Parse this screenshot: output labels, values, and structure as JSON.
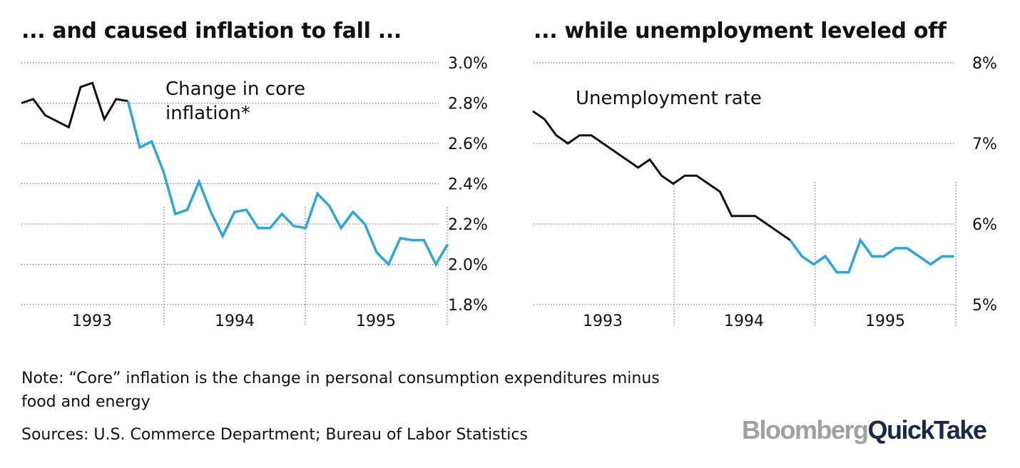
{
  "titles": {
    "left": "... and caused inflation to fall ...",
    "right": "... while unemployment leveled off"
  },
  "note": "Note: “Core” inflation is the change in personal consumption expenditures minus food and energy",
  "sources": "Sources: U.S. Commerce Department; Bureau of Labor Statistics",
  "logo": {
    "part1": "Bloomberg",
    "part2": "QuickTake"
  },
  "colors": {
    "highlight": "#2aa7dc",
    "base": "#111111",
    "grid": "#666666"
  },
  "chart_data": [
    {
      "type": "line",
      "title": "... and caused inflation to fall ...",
      "annotation": [
        "Change in core",
        "inflation*"
      ],
      "x_tick_labels": [
        "1993",
        "1994",
        "1995"
      ],
      "y_tick_labels": [
        "3.0%",
        "2.8%",
        "2.6%",
        "2.4%",
        "2.2%",
        "2.0%",
        "1.8%"
      ],
      "ylim": [
        1.8,
        3.0
      ],
      "x_start": "1992-09",
      "y_unit": "%",
      "grid": "horizontal dotted",
      "highlight_from_index": 9,
      "series": [
        {
          "values": [
            2.8,
            2.82,
            2.74,
            2.71,
            2.68,
            2.88,
            2.9,
            2.72,
            2.82,
            2.81,
            2.58,
            2.61,
            2.46,
            2.25,
            2.27,
            2.41,
            2.26,
            2.14,
            2.26,
            2.27,
            2.18,
            2.18,
            2.25,
            2.19,
            2.18,
            2.35,
            2.29,
            2.18,
            2.26,
            2.2,
            2.06,
            2.0,
            2.13,
            2.12,
            2.12,
            2.0,
            2.1
          ]
        }
      ]
    },
    {
      "type": "line",
      "title": "... while unemployment leveled off",
      "annotation": [
        "Unemployment rate"
      ],
      "x_tick_labels": [
        "1993",
        "1994",
        "1995"
      ],
      "y_tick_labels": [
        "8%",
        "7%",
        "6%",
        "5%"
      ],
      "ylim": [
        5,
        8
      ],
      "x_start": "1992-09",
      "y_unit": "%",
      "grid": "horizontal dotted",
      "highlight_from_index": 22,
      "series": [
        {
          "values": [
            7.4,
            7.3,
            7.1,
            7.0,
            7.1,
            7.1,
            7.0,
            6.9,
            6.8,
            6.7,
            6.8,
            6.6,
            6.5,
            6.6,
            6.6,
            6.5,
            6.4,
            6.1,
            6.1,
            6.1,
            6.0,
            5.9,
            5.8,
            5.6,
            5.5,
            5.6,
            5.4,
            5.4,
            5.8,
            5.6,
            5.6,
            5.7,
            5.7,
            5.6,
            5.5,
            5.6,
            5.6
          ]
        }
      ]
    }
  ]
}
